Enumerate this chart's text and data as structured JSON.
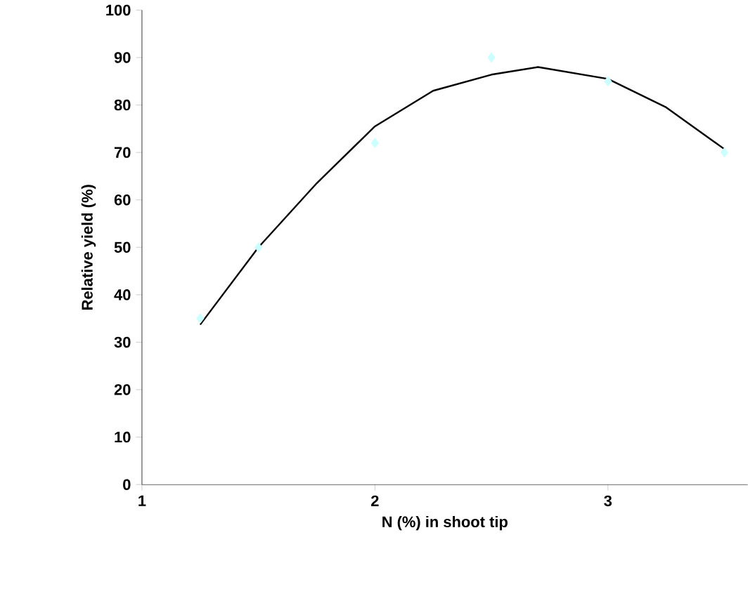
{
  "chart_data": {
    "type": "scatter",
    "xlabel": "N (%) in shoot tip",
    "ylabel": "Relative yield (%)",
    "xlim": [
      1,
      3.6
    ],
    "xticks": [
      1,
      2,
      3
    ],
    "ylim": [
      0,
      100
    ],
    "yticks": [
      0,
      10,
      20,
      30,
      40,
      50,
      60,
      70,
      80,
      90,
      100
    ],
    "grid": false,
    "series": [
      {
        "color": "#ccffff",
        "marker": "diamond",
        "x": [
          1.25,
          1.5,
          2,
          2.5,
          3,
          3.5
        ],
        "values": [
          35,
          50,
          72,
          90,
          85,
          70
        ]
      },
      {
        "type": "line",
        "color": "#000000",
        "marker": "none",
        "line_style": "solid",
        "x": [
          1.25,
          1.5,
          1.75,
          2,
          2.25,
          2.5,
          2.7,
          3,
          3.25,
          3.5
        ],
        "values": [
          33.7,
          50,
          63.5,
          75.5,
          83,
          86.4,
          88,
          85.5,
          79.5,
          70.7
        ]
      }
    ]
  }
}
